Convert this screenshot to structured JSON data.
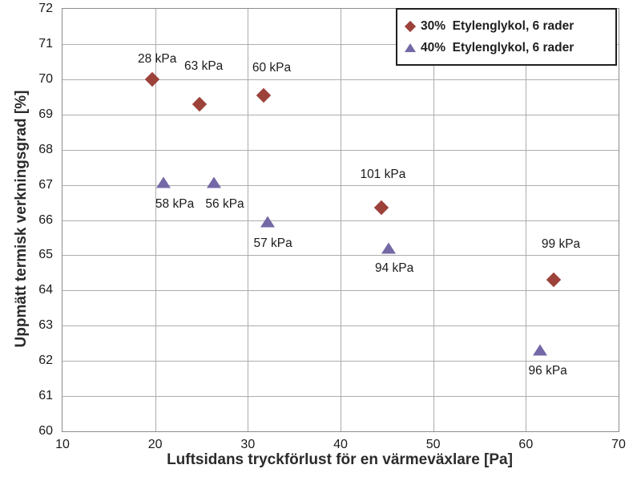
{
  "chart_data": {
    "type": "scatter",
    "title": "",
    "xlabel": "Luftsidans tryckförlust för en värmeväxlare [Pa]",
    "ylabel": "Uppmätt termisk verkningsgrad [%]",
    "xlim": [
      10,
      70
    ],
    "ylim": [
      60,
      72
    ],
    "x_ticks": [
      10,
      20,
      30,
      40,
      50,
      60,
      70
    ],
    "y_ticks": [
      60,
      61,
      62,
      63,
      64,
      65,
      66,
      67,
      68,
      69,
      70,
      71,
      72
    ],
    "grid": true,
    "legend_position": "top-right",
    "series": [
      {
        "name": "30%  Etylenglykol, 6 rader",
        "marker": "diamond",
        "color": "#9c423b",
        "points": [
          {
            "x": 19.7,
            "y": 70.0,
            "label": "28 kPa",
            "label_dx": 6,
            "label_dy": -25
          },
          {
            "x": 24.8,
            "y": 69.3,
            "label": "63 kPa",
            "label_dx": 5,
            "label_dy": -47
          },
          {
            "x": 31.7,
            "y": 69.55,
            "label": "60 kPa",
            "label_dx": 10,
            "label_dy": -34
          },
          {
            "x": 44.4,
            "y": 66.35,
            "label": "101 kPa",
            "label_dx": 2,
            "label_dy": -41
          },
          {
            "x": 63.0,
            "y": 64.3,
            "label": "99 kPa",
            "label_dx": 9,
            "label_dy": -44
          }
        ]
      },
      {
        "name": "40%  Etylenglykol, 6 rader",
        "marker": "triangle",
        "color": "#7568a6",
        "points": [
          {
            "x": 20.9,
            "y": 67.05,
            "label": "58 kPa",
            "label_dx": 14,
            "label_dy": 27
          },
          {
            "x": 26.3,
            "y": 67.05,
            "label": "56 kPa",
            "label_dx": 14,
            "label_dy": 27
          },
          {
            "x": 32.1,
            "y": 65.95,
            "label": "57 kPa",
            "label_dx": 7,
            "label_dy": 27
          },
          {
            "x": 45.2,
            "y": 65.2,
            "label": "94 kPa",
            "label_dx": 7,
            "label_dy": 25
          },
          {
            "x": 61.5,
            "y": 62.3,
            "label": "96 kPa",
            "label_dx": 10,
            "label_dy": 26
          }
        ]
      }
    ]
  }
}
